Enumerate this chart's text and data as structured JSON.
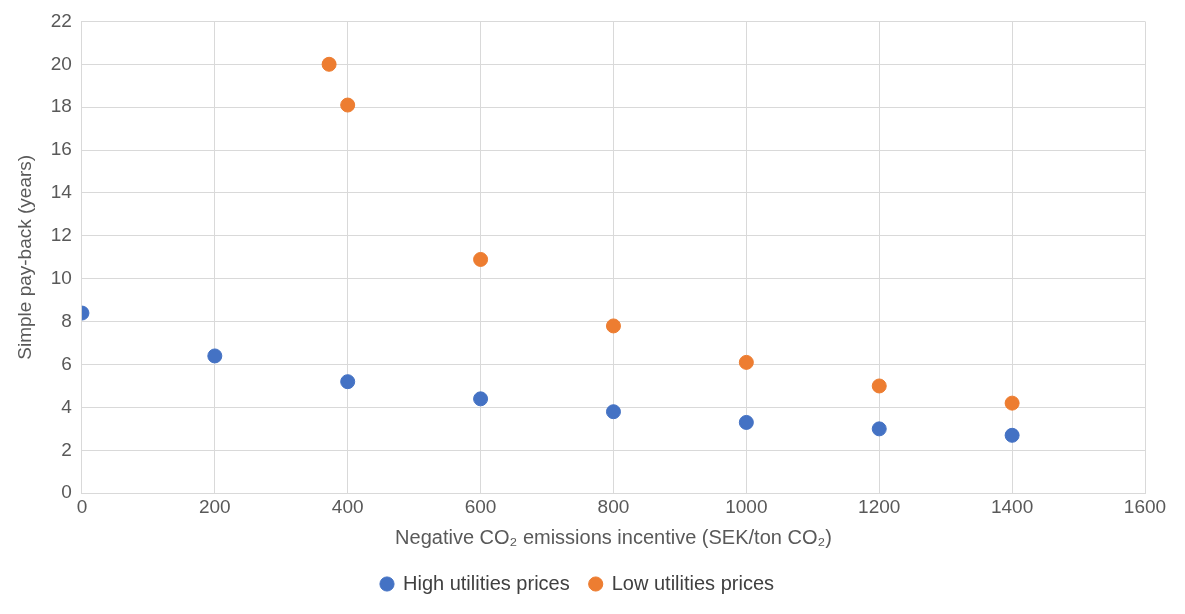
{
  "chart_data": {
    "type": "scatter",
    "xlabel": "Negative CO₂ emissions incentive (SEK/ton CO₂)",
    "ylabel": "Simple pay-back (years)",
    "xlim": [
      0,
      1600
    ],
    "xticks": [
      0,
      200,
      400,
      600,
      800,
      1000,
      1200,
      1400,
      1600
    ],
    "ylim": [
      0,
      22
    ],
    "yticks": [
      0,
      2,
      4,
      6,
      8,
      10,
      12,
      14,
      16,
      18,
      20,
      22
    ],
    "grid": true,
    "legend": "bottom",
    "marker": "circle",
    "series": [
      {
        "name": "High utilities prices",
        "color": "#4472c4",
        "x": [
          0,
          200,
          400,
          600,
          800,
          1000,
          1200,
          1400
        ],
        "values": [
          8.4,
          6.4,
          5.2,
          4.4,
          3.8,
          3.3,
          3.0,
          2.7
        ]
      },
      {
        "name": "Low utilities prices",
        "color": "#ed7d31",
        "x": [
          372,
          400,
          600,
          800,
          1000,
          1200,
          1400
        ],
        "values": [
          20.0,
          18.1,
          10.9,
          7.8,
          6.1,
          5.0,
          4.2
        ]
      }
    ]
  }
}
